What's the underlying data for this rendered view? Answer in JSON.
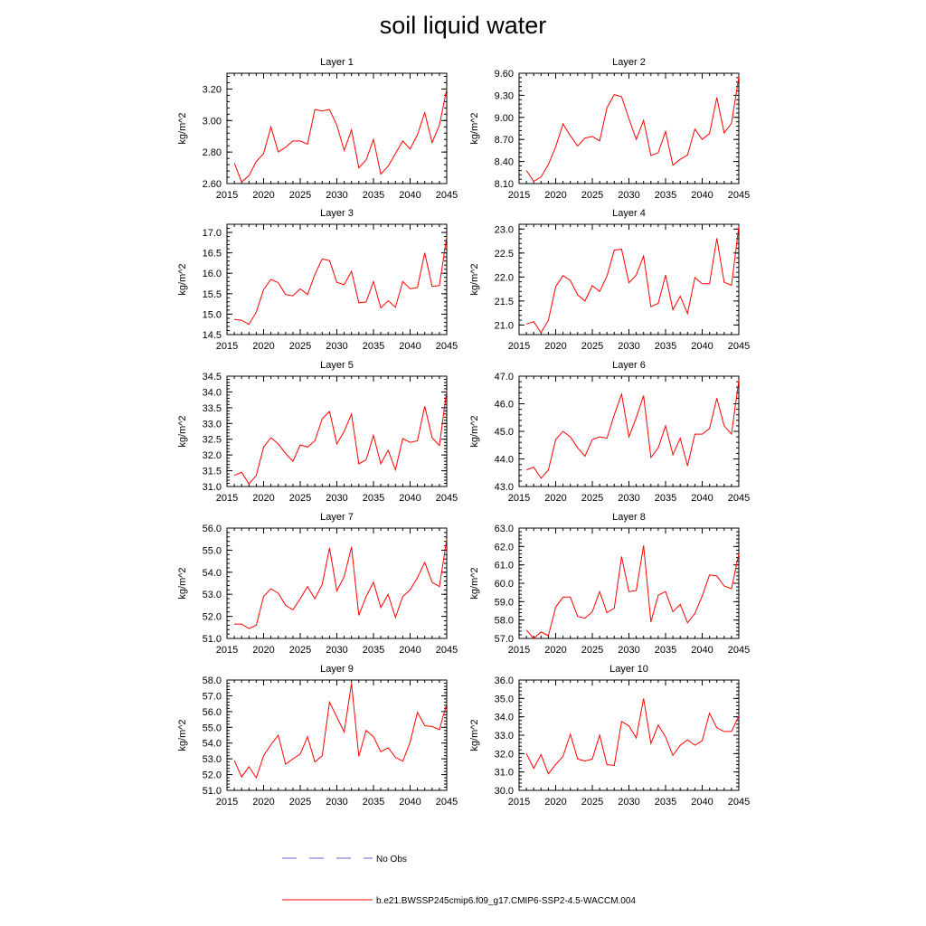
{
  "title": "soil liquid water",
  "colors": {
    "model_line": "#ff0000",
    "obs_line": "#6666cc",
    "axis": "#000000"
  },
  "legend": [
    {
      "label": "No Obs",
      "style": "dashed",
      "color": "#6666cc"
    },
    {
      "label": "b.e21.BWSSP245cmip6.f09_g17.CMIP6-SSP2-4.5-WACCM.004",
      "style": "solid",
      "color": "#ff0000"
    }
  ],
  "chart_data": [
    {
      "type": "line",
      "title": "Layer 1",
      "xlabel": "",
      "ylabel": "kg/m^2",
      "xlim": [
        2015,
        2045
      ],
      "ylim": [
        2.6,
        3.3
      ],
      "xticks": [
        "2015",
        "2020",
        "2025",
        "2030",
        "2035",
        "2040",
        "2045"
      ],
      "yticks": [
        "2.60",
        "2.80",
        "3.00",
        "3.20"
      ],
      "x": [
        2016,
        2017,
        2018,
        2019,
        2020,
        2021,
        2022,
        2023,
        2024,
        2025,
        2026,
        2027,
        2028,
        2029,
        2030,
        2031,
        2032,
        2033,
        2034,
        2035,
        2036,
        2037,
        2038,
        2039,
        2040,
        2041,
        2042,
        2043,
        2044,
        2045
      ],
      "series": [
        {
          "values": [
            2.73,
            2.61,
            2.65,
            2.74,
            2.79,
            2.96,
            2.8,
            2.83,
            2.87,
            2.87,
            2.85,
            3.07,
            3.06,
            3.07,
            2.97,
            2.81,
            2.94,
            2.7,
            2.75,
            2.88,
            2.66,
            2.71,
            2.79,
            2.87,
            2.82,
            2.91,
            3.05,
            2.86,
            2.97,
            3.2
          ]
        }
      ]
    },
    {
      "type": "line",
      "title": "Layer 2",
      "xlabel": "",
      "ylabel": "kg/m^2",
      "xlim": [
        2015,
        2045
      ],
      "ylim": [
        8.1,
        9.6
      ],
      "xticks": [
        "2015",
        "2020",
        "2025",
        "2030",
        "2035",
        "2040",
        "2045"
      ],
      "yticks": [
        "8.10",
        "8.40",
        "8.70",
        "9.00",
        "9.30",
        "9.60"
      ],
      "x": [
        2016,
        2017,
        2018,
        2019,
        2020,
        2021,
        2022,
        2023,
        2024,
        2025,
        2026,
        2027,
        2028,
        2029,
        2030,
        2031,
        2032,
        2033,
        2034,
        2035,
        2036,
        2037,
        2038,
        2039,
        2040,
        2041,
        2042,
        2043,
        2044,
        2045
      ],
      "series": [
        {
          "values": [
            8.28,
            8.13,
            8.19,
            8.36,
            8.6,
            8.91,
            8.75,
            8.61,
            8.72,
            8.74,
            8.68,
            9.13,
            9.31,
            9.28,
            8.98,
            8.7,
            8.96,
            8.48,
            8.52,
            8.81,
            8.35,
            8.43,
            8.49,
            8.84,
            8.7,
            8.78,
            9.27,
            8.79,
            8.92,
            9.55
          ]
        }
      ]
    },
    {
      "type": "line",
      "title": "Layer 3",
      "xlabel": "",
      "ylabel": "kg/m^2",
      "xlim": [
        2015,
        2045
      ],
      "ylim": [
        14.5,
        17.2
      ],
      "xticks": [
        "2015",
        "2020",
        "2025",
        "2030",
        "2035",
        "2040",
        "2045"
      ],
      "yticks": [
        "14.5",
        "15.0",
        "15.5",
        "16.0",
        "16.5",
        "17.0"
      ],
      "x": [
        2016,
        2017,
        2018,
        2019,
        2020,
        2021,
        2022,
        2023,
        2024,
        2025,
        2026,
        2027,
        2028,
        2029,
        2030,
        2031,
        2032,
        2033,
        2034,
        2035,
        2036,
        2037,
        2038,
        2039,
        2040,
        2041,
        2042,
        2043,
        2044,
        2045
      ],
      "series": [
        {
          "values": [
            14.87,
            14.85,
            14.75,
            15.05,
            15.6,
            15.85,
            15.77,
            15.48,
            15.45,
            15.62,
            15.48,
            15.97,
            16.35,
            16.31,
            15.78,
            15.72,
            16.05,
            15.28,
            15.3,
            15.8,
            15.15,
            15.33,
            15.17,
            15.8,
            15.62,
            15.65,
            16.5,
            15.68,
            15.7,
            16.9
          ]
        }
      ]
    },
    {
      "type": "line",
      "title": "Layer 4",
      "xlabel": "",
      "ylabel": "kg/m^2",
      "xlim": [
        2015,
        2045
      ],
      "ylim": [
        20.8,
        23.1
      ],
      "xticks": [
        "2015",
        "2020",
        "2025",
        "2030",
        "2035",
        "2040",
        "2045"
      ],
      "yticks": [
        "21.0",
        "21.5",
        "22.0",
        "22.5",
        "23.0"
      ],
      "x": [
        2016,
        2017,
        2018,
        2019,
        2020,
        2021,
        2022,
        2023,
        2024,
        2025,
        2026,
        2027,
        2028,
        2029,
        2030,
        2031,
        2032,
        2033,
        2034,
        2035,
        2036,
        2037,
        2038,
        2039,
        2040,
        2041,
        2042,
        2043,
        2044,
        2045
      ],
      "series": [
        {
          "values": [
            21.02,
            21.07,
            20.84,
            21.1,
            21.8,
            22.03,
            21.93,
            21.63,
            21.5,
            21.82,
            21.7,
            22.02,
            22.56,
            22.58,
            21.88,
            22.04,
            22.44,
            21.38,
            21.45,
            22.04,
            21.32,
            21.6,
            21.24,
            21.99,
            21.86,
            21.86,
            22.81,
            21.89,
            21.83,
            23.05
          ]
        }
      ]
    },
    {
      "type": "line",
      "title": "Layer 5",
      "xlabel": "",
      "ylabel": "kg/m^2",
      "xlim": [
        2015,
        2045
      ],
      "ylim": [
        31.0,
        34.5
      ],
      "xticks": [
        "2015",
        "2020",
        "2025",
        "2030",
        "2035",
        "2040",
        "2045"
      ],
      "yticks": [
        "31.0",
        "31.5",
        "32.0",
        "32.5",
        "33.0",
        "33.5",
        "34.0",
        "34.5"
      ],
      "x": [
        2016,
        2017,
        2018,
        2019,
        2020,
        2021,
        2022,
        2023,
        2024,
        2025,
        2026,
        2027,
        2028,
        2029,
        2030,
        2031,
        2032,
        2033,
        2034,
        2035,
        2036,
        2037,
        2038,
        2039,
        2040,
        2041,
        2042,
        2043,
        2044,
        2045
      ],
      "series": [
        {
          "values": [
            31.35,
            31.45,
            31.08,
            31.35,
            32.25,
            32.55,
            32.35,
            32.05,
            31.8,
            32.32,
            32.25,
            32.45,
            33.15,
            33.38,
            32.35,
            32.75,
            33.3,
            31.72,
            31.85,
            32.62,
            31.72,
            32.15,
            31.53,
            32.52,
            32.4,
            32.45,
            33.55,
            32.55,
            32.3,
            34.05
          ]
        }
      ]
    },
    {
      "type": "line",
      "title": "Layer 6",
      "xlabel": "",
      "ylabel": "kg/m^2",
      "xlim": [
        2015,
        2045
      ],
      "ylim": [
        43.0,
        47.0
      ],
      "xticks": [
        "2015",
        "2020",
        "2025",
        "2030",
        "2035",
        "2040",
        "2045"
      ],
      "yticks": [
        "43.0",
        "44.0",
        "45.0",
        "46.0",
        "47.0"
      ],
      "x": [
        2016,
        2017,
        2018,
        2019,
        2020,
        2021,
        2022,
        2023,
        2024,
        2025,
        2026,
        2027,
        2028,
        2029,
        2030,
        2031,
        2032,
        2033,
        2034,
        2035,
        2036,
        2037,
        2038,
        2039,
        2040,
        2041,
        2042,
        2043,
        2044,
        2045
      ],
      "series": [
        {
          "values": [
            43.6,
            43.7,
            43.3,
            43.6,
            44.7,
            45.0,
            44.8,
            44.4,
            44.1,
            44.7,
            44.8,
            44.75,
            45.6,
            46.35,
            44.8,
            45.5,
            46.3,
            44.05,
            44.4,
            45.2,
            44.15,
            44.75,
            43.75,
            44.9,
            44.9,
            45.1,
            46.2,
            45.2,
            44.9,
            46.85
          ]
        }
      ]
    },
    {
      "type": "line",
      "title": "Layer 7",
      "xlabel": "",
      "ylabel": "kg/m^2",
      "xlim": [
        2015,
        2045
      ],
      "ylim": [
        51.0,
        56.0
      ],
      "xticks": [
        "2015",
        "2020",
        "2025",
        "2030",
        "2035",
        "2040",
        "2045"
      ],
      "yticks": [
        "51.0",
        "52.0",
        "53.0",
        "54.0",
        "55.0",
        "56.0"
      ],
      "x": [
        2016,
        2017,
        2018,
        2019,
        2020,
        2021,
        2022,
        2023,
        2024,
        2025,
        2026,
        2027,
        2028,
        2029,
        2030,
        2031,
        2032,
        2033,
        2034,
        2035,
        2036,
        2037,
        2038,
        2039,
        2040,
        2041,
        2042,
        2043,
        2044,
        2045
      ],
      "series": [
        {
          "values": [
            51.65,
            51.65,
            51.45,
            51.6,
            52.9,
            53.25,
            53.05,
            52.5,
            52.3,
            52.8,
            53.35,
            52.8,
            53.45,
            55.1,
            53.15,
            53.8,
            55.15,
            52.05,
            52.9,
            53.55,
            52.4,
            53.0,
            51.95,
            52.9,
            53.2,
            53.75,
            54.45,
            53.55,
            53.35,
            55.5
          ]
        }
      ]
    },
    {
      "type": "line",
      "title": "Layer 8",
      "xlabel": "",
      "ylabel": "kg/m^2",
      "xlim": [
        2015,
        2045
      ],
      "ylim": [
        57.0,
        63.0
      ],
      "xticks": [
        "2015",
        "2020",
        "2025",
        "2030",
        "2035",
        "2040",
        "2045"
      ],
      "yticks": [
        "57.0",
        "58.0",
        "59.0",
        "60.0",
        "61.0",
        "62.0",
        "63.0"
      ],
      "x": [
        2016,
        2017,
        2018,
        2019,
        2020,
        2021,
        2022,
        2023,
        2024,
        2025,
        2026,
        2027,
        2028,
        2029,
        2030,
        2031,
        2032,
        2033,
        2034,
        2035,
        2036,
        2037,
        2038,
        2039,
        2040,
        2041,
        2042,
        2043,
        2044,
        2045
      ],
      "series": [
        {
          "values": [
            57.45,
            57.0,
            57.35,
            57.15,
            58.7,
            59.25,
            59.25,
            58.2,
            58.1,
            58.45,
            59.55,
            58.4,
            58.65,
            61.45,
            59.55,
            59.6,
            62.05,
            57.9,
            59.35,
            59.55,
            58.45,
            58.85,
            57.85,
            58.35,
            59.3,
            60.45,
            60.4,
            59.85,
            59.7,
            61.6
          ]
        }
      ]
    },
    {
      "type": "line",
      "title": "Layer 9",
      "xlabel": "",
      "ylabel": "kg/m^2",
      "xlim": [
        2015,
        2045
      ],
      "ylim": [
        51.0,
        58.0
      ],
      "xticks": [
        "2015",
        "2020",
        "2025",
        "2030",
        "2035",
        "2040",
        "2045"
      ],
      "yticks": [
        "51.0",
        "52.0",
        "53.0",
        "54.0",
        "55.0",
        "56.0",
        "57.0",
        "58.0"
      ],
      "x": [
        2016,
        2017,
        2018,
        2019,
        2020,
        2021,
        2022,
        2023,
        2024,
        2025,
        2026,
        2027,
        2028,
        2029,
        2030,
        2031,
        2032,
        2033,
        2034,
        2035,
        2036,
        2037,
        2038,
        2039,
        2040,
        2041,
        2042,
        2043,
        2044,
        2045
      ],
      "series": [
        {
          "values": [
            52.9,
            51.85,
            52.5,
            51.8,
            53.2,
            53.9,
            54.5,
            52.65,
            53.0,
            53.3,
            54.4,
            52.8,
            53.2,
            56.6,
            55.65,
            54.7,
            57.8,
            53.15,
            54.8,
            54.4,
            53.45,
            53.7,
            53.1,
            52.85,
            54.05,
            55.95,
            55.1,
            55.05,
            54.85,
            56.5
          ]
        }
      ]
    },
    {
      "type": "line",
      "title": "Layer 10",
      "xlabel": "",
      "ylabel": "kg/m^2",
      "xlim": [
        2015,
        2045
      ],
      "ylim": [
        30.0,
        36.0
      ],
      "xticks": [
        "2015",
        "2020",
        "2025",
        "2030",
        "2035",
        "2040",
        "2045"
      ],
      "yticks": [
        "30.0",
        "31.0",
        "32.0",
        "33.0",
        "34.0",
        "35.0",
        "36.0"
      ],
      "x": [
        2016,
        2017,
        2018,
        2019,
        2020,
        2021,
        2022,
        2023,
        2024,
        2025,
        2026,
        2027,
        2028,
        2029,
        2030,
        2031,
        2032,
        2033,
        2034,
        2035,
        2036,
        2037,
        2038,
        2039,
        2040,
        2041,
        2042,
        2043,
        2044,
        2045
      ],
      "series": [
        {
          "values": [
            32.0,
            31.2,
            31.95,
            30.9,
            31.4,
            31.85,
            33.05,
            31.7,
            31.6,
            31.7,
            33.0,
            31.4,
            31.35,
            33.75,
            33.5,
            32.85,
            35.0,
            32.55,
            33.55,
            32.9,
            31.9,
            32.45,
            32.75,
            32.45,
            32.7,
            34.2,
            33.4,
            33.2,
            33.2,
            34.05
          ]
        }
      ]
    }
  ]
}
